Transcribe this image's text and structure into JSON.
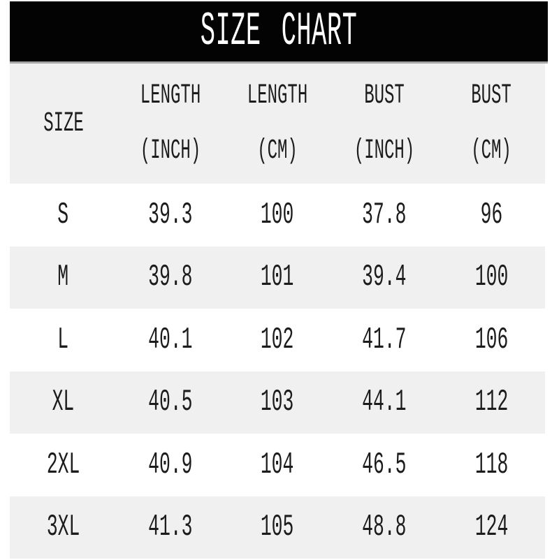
{
  "title": "SIZE CHART",
  "table": {
    "columns": [
      {
        "label": "SIZE",
        "sub": ""
      },
      {
        "label": "LENGTH",
        "sub": "(INCH)"
      },
      {
        "label": "LENGTH",
        "sub": "(CM)"
      },
      {
        "label": "BUST",
        "sub": "(INCH)"
      },
      {
        "label": "BUST",
        "sub": "(CM)"
      }
    ],
    "rows": [
      {
        "size": "S",
        "values": [
          "39.3",
          "100",
          "37.8",
          "96"
        ]
      },
      {
        "size": "M",
        "values": [
          "39.8",
          "101",
          "39.4",
          "100"
        ]
      },
      {
        "size": "L",
        "values": [
          "40.1",
          "102",
          "41.7",
          "106"
        ]
      },
      {
        "size": "XL",
        "values": [
          "40.5",
          "103",
          "44.1",
          "112"
        ]
      },
      {
        "size": "2XL",
        "values": [
          "40.9",
          "104",
          "46.5",
          "118"
        ]
      },
      {
        "size": "3XL",
        "values": [
          "41.3",
          "105",
          "48.8",
          "124"
        ]
      }
    ]
  },
  "colors": {
    "title_bar_bg": "#030303",
    "title_text": "#ffffff",
    "divider": "#a6a6a6",
    "row_bg": "#ffffff",
    "row_alt_bg": "#f0f0f0",
    "text": "#1c1c1c"
  },
  "chart_data": {
    "type": "table",
    "title": "SIZE CHART",
    "columns": [
      "SIZE",
      "LENGTH (INCH)",
      "LENGTH (CM)",
      "BUST (INCH)",
      "BUST (CM)"
    ],
    "rows": [
      [
        "S",
        39.3,
        100,
        37.8,
        96
      ],
      [
        "M",
        39.8,
        101,
        39.4,
        100
      ],
      [
        "L",
        40.1,
        102,
        41.7,
        106
      ],
      [
        "XL",
        40.5,
        103,
        44.1,
        112
      ],
      [
        "2XL",
        40.9,
        104,
        46.5,
        118
      ],
      [
        "3XL",
        41.3,
        105,
        48.8,
        124
      ]
    ]
  }
}
